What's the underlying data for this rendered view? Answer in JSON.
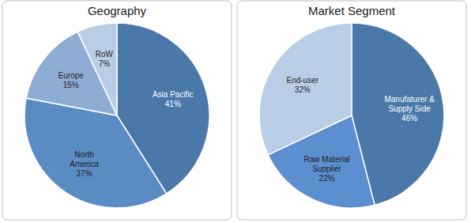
{
  "chart_data": [
    {
      "type": "pie",
      "title": "Geography",
      "categories": [
        "Asia Pacific",
        "North America",
        "Europe",
        "RoW"
      ],
      "values": [
        41,
        37,
        15,
        7
      ],
      "value_labels": [
        "41%",
        "37%",
        "15%",
        "7%"
      ],
      "colors": [
        "#4a78a9",
        "#5a8cc3",
        "#8eadd4",
        "#bacde6"
      ],
      "data_labels": true
    },
    {
      "type": "pie",
      "title": "Market Segment",
      "categories": [
        "Manufaturer & Supply Side",
        "Raw Material Supplier",
        "End-user"
      ],
      "values": [
        46,
        22,
        32
      ],
      "value_labels": [
        "46%",
        "22%",
        "32%"
      ],
      "colors": [
        "#4a78a9",
        "#5b8fd0",
        "#bacde6"
      ],
      "data_labels": true
    }
  ]
}
